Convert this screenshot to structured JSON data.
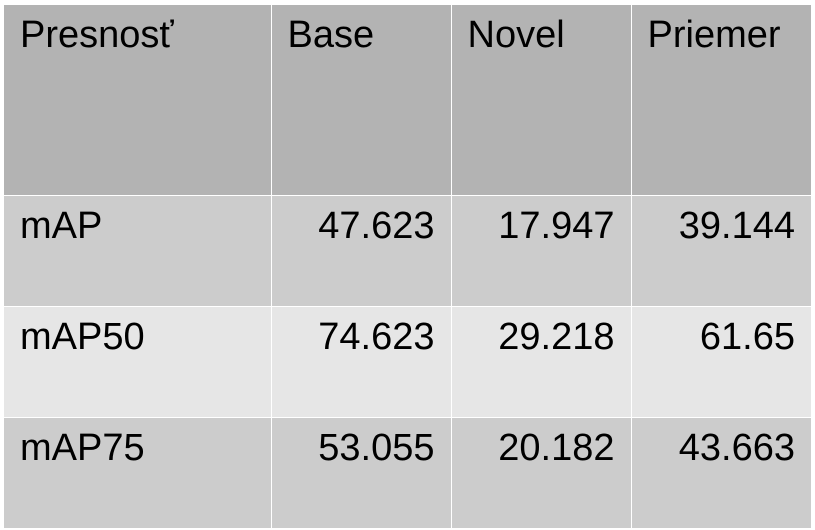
{
  "table": {
    "headers": [
      "Presnosť",
      "Base",
      "Novel",
      "Priemer"
    ],
    "rows": [
      [
        "mAP",
        "47.623",
        "17.947",
        "39.144"
      ],
      [
        "mAP50",
        "74.623",
        "29.218",
        "61.65"
      ],
      [
        "mAP75",
        "53.055",
        "20.182",
        "43.663"
      ]
    ]
  },
  "colors": {
    "header_bg": "#b3b3b3",
    "row_odd_bg": "#cccccc",
    "row_even_bg": "#e6e6e6",
    "border": "#ffffff",
    "text": "#000000"
  }
}
